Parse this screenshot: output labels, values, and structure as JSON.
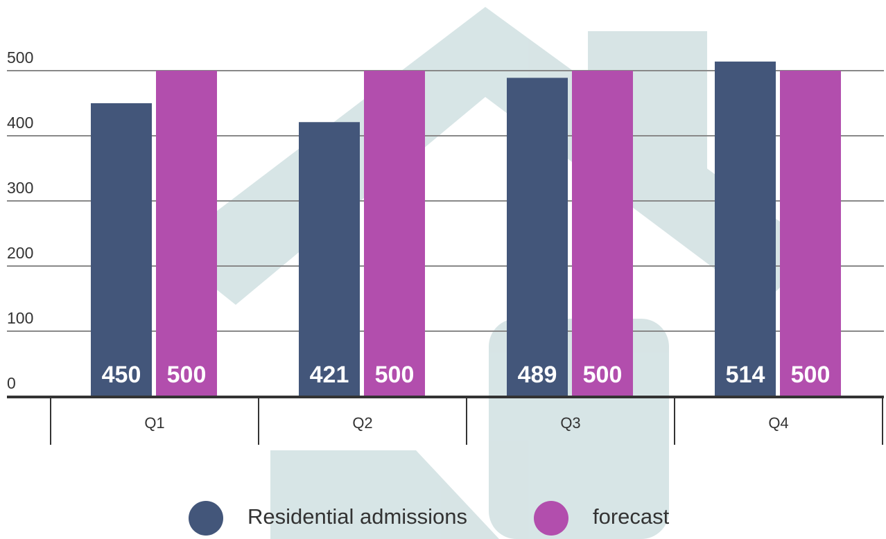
{
  "chart_data": {
    "type": "bar",
    "categories": [
      "Q1",
      "Q2",
      "Q3",
      "Q4"
    ],
    "series": [
      {
        "name": "Residential admissions",
        "color": "#43567a",
        "values": [
          450,
          421,
          489,
          514
        ]
      },
      {
        "name": "forecast",
        "color": "#b24ead",
        "values": [
          500,
          500,
          500,
          500
        ]
      }
    ],
    "ylim": [
      0,
      500
    ],
    "yticks": [
      0,
      100,
      200,
      300,
      400,
      500
    ],
    "grid": true,
    "legend": "bottom"
  }
}
